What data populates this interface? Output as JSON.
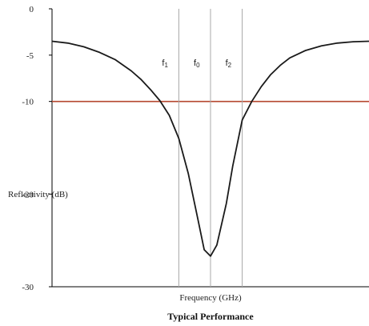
{
  "chart_data": {
    "type": "line",
    "title": "Typical Performance",
    "xlabel": "Frequency (GHz)",
    "ylabel": "Reflectivity (dB)",
    "ylim": [
      -30,
      0
    ],
    "yticks": [
      0,
      -5,
      -10,
      -20,
      -30
    ],
    "xlim": [
      0,
      1
    ],
    "grid": false,
    "series": [
      {
        "x": [
          0.0,
          0.05,
          0.1,
          0.15,
          0.2,
          0.25,
          0.28,
          0.31,
          0.34,
          0.37,
          0.4,
          0.43,
          0.46,
          0.48,
          0.5,
          0.52,
          0.55,
          0.57,
          0.6,
          0.63,
          0.66,
          0.69,
          0.72,
          0.75,
          0.8,
          0.85,
          0.9,
          0.95,
          1.0
        ],
        "values": [
          -3.5,
          -3.7,
          -4.1,
          -4.7,
          -5.5,
          -6.7,
          -7.6,
          -8.7,
          -9.9,
          -11.5,
          -14.0,
          -17.8,
          -22.7,
          -26.0,
          -26.7,
          -25.5,
          -21.0,
          -17.0,
          -12.0,
          -10.0,
          -8.4,
          -7.1,
          -6.1,
          -5.3,
          -4.5,
          -4.0,
          -3.7,
          -3.55,
          -3.5
        ]
      }
    ],
    "reference_line": {
      "y": -10,
      "color": "#b5472f"
    },
    "markers": [
      {
        "label": "f1",
        "x": 0.4
      },
      {
        "label": "f0",
        "x": 0.5
      },
      {
        "label": "f2",
        "x": 0.6
      }
    ],
    "colors": {
      "curve": "#1a1a1a",
      "axes": "#000000",
      "marker_lines": "#a8a8a8"
    }
  }
}
